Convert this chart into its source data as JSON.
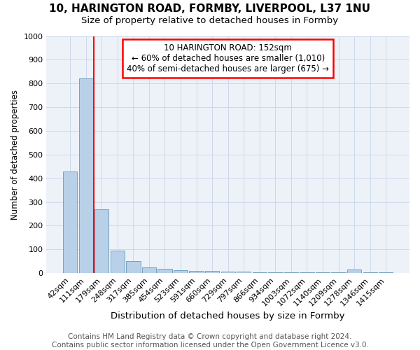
{
  "title1": "10, HARINGTON ROAD, FORMBY, LIVERPOOL, L37 1NU",
  "title2": "Size of property relative to detached houses in Formby",
  "xlabel": "Distribution of detached houses by size in Formby",
  "ylabel": "Number of detached properties",
  "bar_labels": [
    "42sqm",
    "111sqm",
    "179sqm",
    "248sqm",
    "317sqm",
    "385sqm",
    "454sqm",
    "523sqm",
    "591sqm",
    "660sqm",
    "729sqm",
    "797sqm",
    "866sqm",
    "934sqm",
    "1003sqm",
    "1072sqm",
    "1140sqm",
    "1209sqm",
    "1278sqm",
    "1346sqm",
    "1415sqm"
  ],
  "bar_values": [
    430,
    820,
    270,
    95,
    50,
    25,
    17,
    12,
    10,
    10,
    5,
    5,
    2,
    2,
    2,
    2,
    2,
    2,
    15,
    2,
    2
  ],
  "bar_color": "#b8d0e8",
  "bar_edge_color": "#6699bb",
  "vline_x": 1.5,
  "vline_color": "red",
  "annotation_line1": "10 HARINGTON ROAD: 152sqm",
  "annotation_line2": "← 60% of detached houses are smaller (1,010)",
  "annotation_line3": "40% of semi-detached houses are larger (675) →",
  "ylim": [
    0,
    1000
  ],
  "yticks": [
    0,
    100,
    200,
    300,
    400,
    500,
    600,
    700,
    800,
    900,
    1000
  ],
  "footer1": "Contains HM Land Registry data © Crown copyright and database right 2024.",
  "footer2": "Contains public sector information licensed under the Open Government Licence v3.0.",
  "bg_color": "#edf2f9",
  "grid_color": "#cdd8ea",
  "title1_fontsize": 11,
  "title2_fontsize": 9.5,
  "xlabel_fontsize": 9.5,
  "ylabel_fontsize": 8.5,
  "tick_fontsize": 8,
  "annotation_fontsize": 8.5,
  "footer_fontsize": 7.5
}
